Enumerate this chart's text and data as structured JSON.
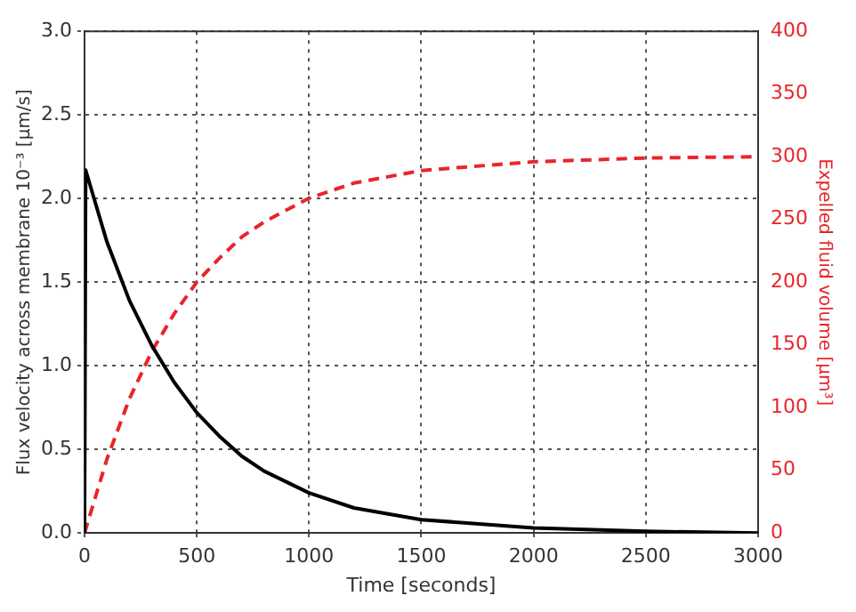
{
  "chart_data": {
    "type": "line",
    "xlabel": "Time [seconds]",
    "ylabel": "Flux velocity across membrane 10⁻³ [μm/s]",
    "y2label": "Expelled fluid volume [μm³]",
    "series": [
      {
        "color": "#000000",
        "line_style": "solid",
        "x": [
          0,
          5,
          100,
          200,
          300,
          400,
          500,
          600,
          700,
          800,
          1000,
          1200,
          1500,
          2000,
          2500,
          3000
        ],
        "values": [
          0,
          2.17,
          1.74,
          1.39,
          1.12,
          0.9,
          0.72,
          0.58,
          0.46,
          0.37,
          0.24,
          0.15,
          0.08,
          0.03,
          0.01,
          0
        ]
      },
      {
        "color": "#e8262a",
        "line_style": "dashed",
        "axis": "y2",
        "x": [
          0,
          100,
          200,
          300,
          400,
          500,
          600,
          700,
          800,
          1000,
          1200,
          1500,
          2000,
          2500,
          3000
        ],
        "values": [
          0,
          59,
          107,
          145,
          175,
          200,
          219,
          236,
          248,
          267,
          279,
          289,
          296,
          299,
          300
        ]
      }
    ],
    "xlim": [
      0,
      3000
    ],
    "xticks": [
      0,
      500,
      1000,
      1500,
      2000,
      2500,
      3000
    ],
    "ylim": [
      0,
      3
    ],
    "yticks": [
      {
        "value": 0,
        "label": "0.0"
      },
      0.5,
      {
        "value": 1,
        "label": "1.0"
      },
      1.5,
      {
        "value": 2,
        "label": "2.0"
      },
      2.5,
      {
        "value": 3,
        "label": "3.0"
      }
    ],
    "y2lim": [
      0,
      400
    ],
    "y2ticks": [
      0,
      50,
      100,
      150,
      200,
      250,
      300,
      350,
      400
    ],
    "grid": true,
    "legend": false,
    "marker": "none"
  }
}
